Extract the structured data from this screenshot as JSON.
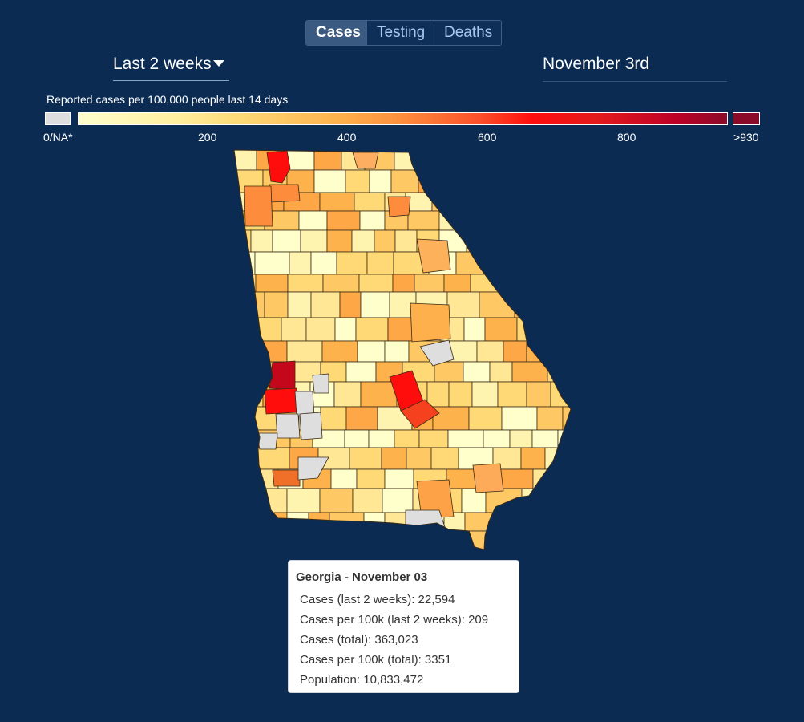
{
  "tabs": [
    {
      "label": "Cases",
      "active": true
    },
    {
      "label": "Testing",
      "active": false
    },
    {
      "label": "Deaths",
      "active": false
    }
  ],
  "period": {
    "selected": "Last 2 weeks"
  },
  "date": {
    "label": "November 3rd"
  },
  "legend": {
    "title": "Reported cases per 100,000 people last 14 days",
    "na_label": "0/NA*",
    "max_label": ">930",
    "ticks": [
      "200",
      "400",
      "600",
      "800"
    ],
    "colors": {
      "na": "#dedede",
      "low": "#ffffcc",
      "high": "#8b0a2a"
    }
  },
  "map": {
    "region": "Georgia",
    "highlight_colors": [
      "#ff0d0d",
      "#c4071a",
      "#fd8d3c"
    ]
  },
  "tooltip": {
    "title": "Georgia - November 03",
    "rows": [
      "Cases (last 2 weeks): 22,594",
      "Cases per 100k (last 2 weeks): 209",
      "Cases (total): 363,023",
      "Cases per 100k (total): 3351",
      "Population: 10,833,472"
    ]
  }
}
